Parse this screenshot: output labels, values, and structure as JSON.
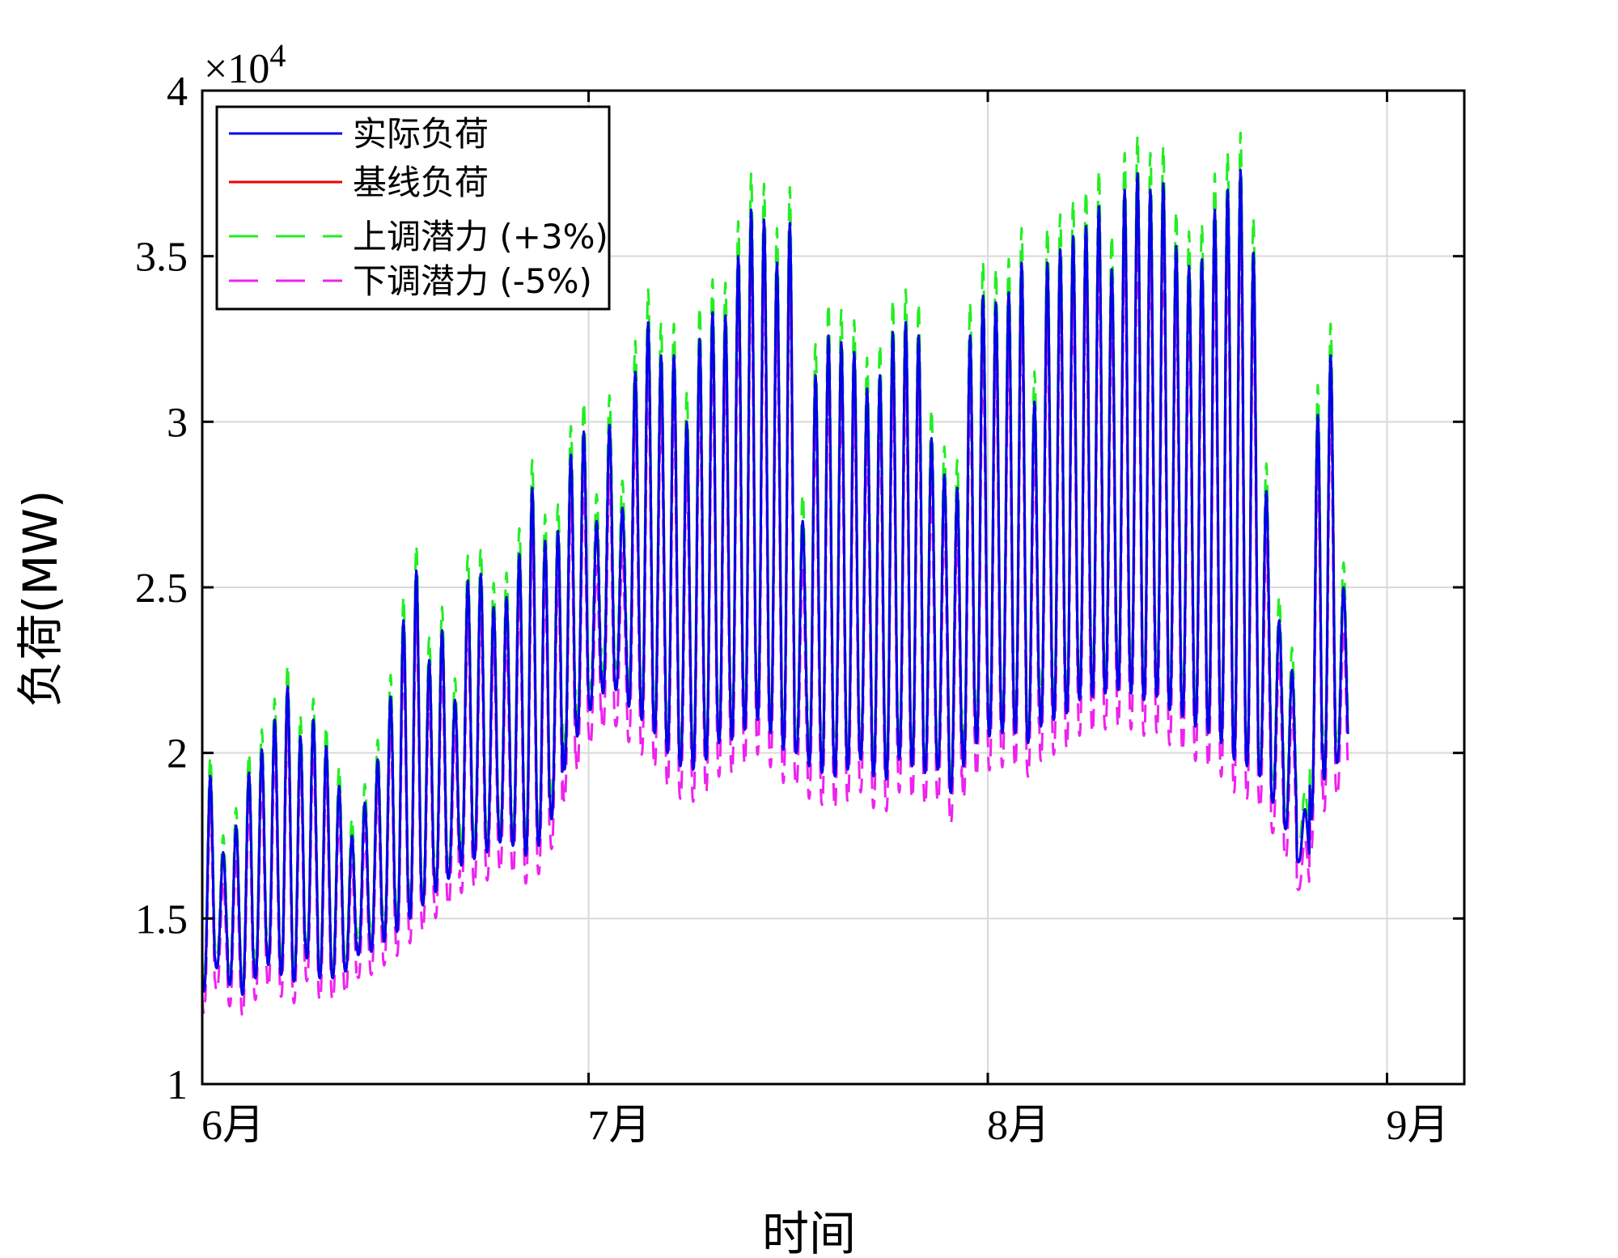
{
  "chart_data": {
    "type": "line",
    "title": "",
    "xlabel": "时间",
    "ylabel": "负荷(MW)",
    "y_multiplier_label": "×10",
    "y_multiplier_exp": "4",
    "ylim": [
      10000,
      40000
    ],
    "yticks": [
      10000,
      15000,
      20000,
      25000,
      30000,
      35000,
      40000
    ],
    "ytick_labels": [
      "1",
      "1.5",
      "2",
      "2.5",
      "3",
      "3.5",
      "4"
    ],
    "x_unit": "day",
    "xlim": [
      "2025-06-01",
      "2025-09-07"
    ],
    "xticks": [
      "2025-06-01",
      "2025-07-01",
      "2025-08-01",
      "2025-09-01"
    ],
    "xtick_labels": [
      "6月",
      "7月",
      "8月",
      "9月"
    ],
    "data_range": [
      "2025-06-01",
      "2025-08-31"
    ],
    "grid": true,
    "legend_position": "top-left",
    "series": [
      {
        "name": "实际负荷",
        "color": "#0000ee",
        "style": "solid",
        "scale": 1.0
      },
      {
        "name": "基线负荷",
        "color": "#ee0000",
        "style": "solid",
        "scale": 1.0
      },
      {
        "name": "上调潜力 (+3%)",
        "color": "#22ee22",
        "style": "dashed",
        "scale": 1.03
      },
      {
        "name": "下调潜力 (-5%)",
        "color": "#ee22ee",
        "style": "dashed",
        "scale": 0.95
      }
    ],
    "daily_peak": [
      19300,
      17000,
      17800,
      19400,
      20100,
      21000,
      22000,
      20500,
      21000,
      20200,
      19000,
      17500,
      18500,
      19800,
      21700,
      24000,
      25500,
      22800,
      23700,
      21600,
      25200,
      25400,
      24400,
      24700,
      26000,
      28000,
      26400,
      26700,
      29000,
      29700,
      27000,
      29900,
      27400,
      31500,
      33000,
      32000,
      32000,
      30000,
      32500,
      33300,
      33200,
      35000,
      36400,
      36100,
      34800,
      36000,
      27000,
      31400,
      32600,
      32400,
      32100,
      31000,
      31400,
      32700,
      33000,
      32600,
      29500,
      28400,
      28000,
      32600,
      33800,
      33600,
      33900,
      34800,
      30600,
      34800,
      35200,
      35600,
      35900,
      36500,
      34600,
      37000,
      37500,
      37000,
      37200,
      35300,
      34700,
      34900,
      36400,
      37000,
      37600,
      35100,
      27900,
      24000,
      22500,
      18300,
      30200,
      32000,
      25000
    ],
    "daily_trough": [
      12800,
      13500,
      13000,
      12700,
      13200,
      13600,
      13300,
      13100,
      13800,
      13200,
      13200,
      13400,
      13900,
      14000,
      14300,
      14600,
      15000,
      15400,
      15800,
      16200,
      16600,
      16800,
      17000,
      17300,
      17200,
      16900,
      17200,
      18000,
      19500,
      20500,
      21300,
      21800,
      21900,
      21400,
      21000,
      20600,
      20000,
      19600,
      19500,
      19800,
      20300,
      20400,
      20700,
      21000,
      20600,
      20100,
      20000,
      19600,
      19400,
      19300,
      19500,
      19800,
      19300,
      19200,
      19800,
      19600,
      19400,
      19500,
      18800,
      19600,
      20300,
      20500,
      20600,
      20600,
      20300,
      20800,
      21000,
      21200,
      21600,
      21700,
      21800,
      21900,
      21800,
      21600,
      21700,
      21300,
      21100,
      20800,
      20600,
      20300,
      19800,
      19600,
      19300,
      18500,
      17700,
      16700,
      18000,
      19200,
      19700
    ]
  }
}
